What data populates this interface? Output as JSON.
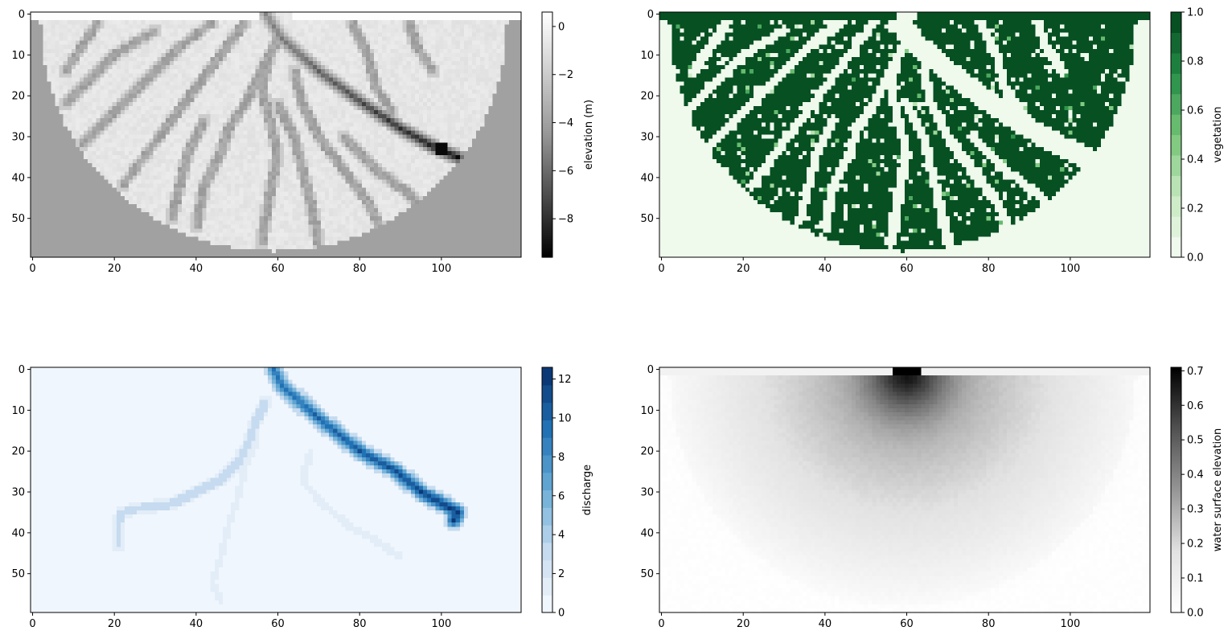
{
  "chart_data": [
    {
      "type": "heatmap",
      "title": "",
      "cmap": "Greys_r",
      "grid_shape": [
        60,
        120
      ],
      "xlim": [
        0,
        119
      ],
      "ylim": [
        59,
        0
      ],
      "xticks": [
        "0",
        "20",
        "40",
        "60",
        "80",
        "100"
      ],
      "yticks": [
        "0",
        "10",
        "20",
        "30",
        "40",
        "50"
      ],
      "colorbar": {
        "label": "elevation (m)",
        "range": [
          -9.6,
          0.6
        ],
        "ticks": [
          "0",
          "−2",
          "−4",
          "−6",
          "−8"
        ],
        "tick_values": [
          0,
          -2,
          -4,
          -6,
          -8
        ]
      },
      "outside_value": -4.0,
      "inlet_strip_value": 0.5,
      "main_channel": {
        "path": [
          [
            0,
            57
          ],
          [
            6,
            61
          ],
          [
            14,
            70
          ],
          [
            22,
            81
          ],
          [
            28,
            90
          ],
          [
            33,
            99
          ],
          [
            35,
            104
          ]
        ],
        "min_value": -9.3
      },
      "min_elevation_point": [
        33,
        100
      ]
    },
    {
      "type": "heatmap",
      "title": "",
      "cmap": "Greens",
      "grid_shape": [
        60,
        120
      ],
      "xlim": [
        0,
        119
      ],
      "ylim": [
        59,
        0
      ],
      "xticks": [
        "0",
        "20",
        "40",
        "60",
        "80",
        "100"
      ],
      "yticks": [
        "0",
        "10",
        "20",
        "30",
        "40",
        "50"
      ],
      "colorbar": {
        "label": "vegetation",
        "range": [
          0.0,
          1.0
        ],
        "ticks": [
          "0.0",
          "0.2",
          "0.4",
          "0.6",
          "0.8",
          "1.0"
        ],
        "tick_values": [
          0.0,
          0.2,
          0.4,
          0.6,
          0.8,
          1.0
        ],
        "levels": 12
      },
      "outside_value": 0.0,
      "top_row_value": 1.0,
      "channels_value": 0.0
    },
    {
      "type": "heatmap",
      "title": "",
      "cmap": "Blues",
      "grid_shape": [
        60,
        120
      ],
      "xlim": [
        0,
        119
      ],
      "ylim": [
        59,
        0
      ],
      "xticks": [
        "0",
        "20",
        "40",
        "60",
        "80",
        "100"
      ],
      "yticks": [
        "0",
        "10",
        "20",
        "30",
        "40",
        "50"
      ],
      "colorbar": {
        "label": "discharge",
        "range": [
          0,
          12.6
        ],
        "ticks": [
          "0",
          "2",
          "4",
          "6",
          "8",
          "10",
          "12"
        ],
        "tick_values": [
          0,
          2,
          4,
          6,
          8,
          10,
          12
        ],
        "levels": 14
      },
      "main_channel": {
        "path": [
          [
            0,
            59
          ],
          [
            4,
            61
          ],
          [
            12,
            70
          ],
          [
            20,
            80
          ],
          [
            25,
            89
          ],
          [
            30,
            95
          ],
          [
            35,
            104
          ],
          [
            37,
            103
          ]
        ],
        "max_value": 12.5
      },
      "branches": [
        {
          "path": [
            [
              8,
              57
            ],
            [
              14,
              54
            ],
            [
              18,
              53
            ],
            [
              23,
              50
            ],
            [
              27,
              46
            ],
            [
              30,
              40
            ],
            [
              33,
              34
            ],
            [
              34,
              26
            ],
            [
              35,
              22
            ],
            [
              37,
              21
            ],
            [
              43,
              21
            ]
          ],
          "value": 3.2
        },
        {
          "path": [
            [
              17,
              55
            ],
            [
              24,
              52
            ],
            [
              32,
              50
            ],
            [
              38,
              48
            ],
            [
              46,
              46
            ],
            [
              52,
              44
            ],
            [
              57,
              46
            ]
          ],
          "value": 1.2
        },
        {
          "path": [
            [
              20,
              68
            ],
            [
              27,
              66
            ],
            [
              32,
              70
            ],
            [
              38,
              77
            ],
            [
              42,
              84
            ],
            [
              46,
              90
            ]
          ],
          "value": 1.0
        },
        {
          "path": [
            [
              22,
              52
            ],
            [
              30,
              51
            ],
            [
              38,
              50
            ],
            [
              47,
              48
            ],
            [
              55,
              48
            ]
          ],
          "value": 0.6
        },
        {
          "path": [
            [
              20,
              51
            ],
            [
              30,
              48
            ],
            [
              38,
              45
            ],
            [
              45,
              41
            ],
            [
              52,
              39
            ]
          ],
          "value": 0.5
        }
      ]
    },
    {
      "type": "heatmap",
      "title": "",
      "cmap": "Greys",
      "grid_shape": [
        60,
        120
      ],
      "xlim": [
        0,
        119
      ],
      "ylim": [
        59,
        0
      ],
      "xticks": [
        "0",
        "20",
        "40",
        "60",
        "80",
        "100"
      ],
      "yticks": [
        "0",
        "10",
        "20",
        "30",
        "40",
        "50"
      ],
      "colorbar": {
        "label": "water surface elevation",
        "range": [
          0.0,
          0.71
        ],
        "ticks": [
          "0.0",
          "0.1",
          "0.2",
          "0.3",
          "0.4",
          "0.5",
          "0.6",
          "0.7"
        ],
        "tick_values": [
          0.0,
          0.1,
          0.2,
          0.3,
          0.4,
          0.5,
          0.6,
          0.7
        ]
      },
      "inlet_strip_value": 0.08,
      "inlet_max": {
        "row": 0,
        "col": 60,
        "value": 0.71
      }
    }
  ]
}
